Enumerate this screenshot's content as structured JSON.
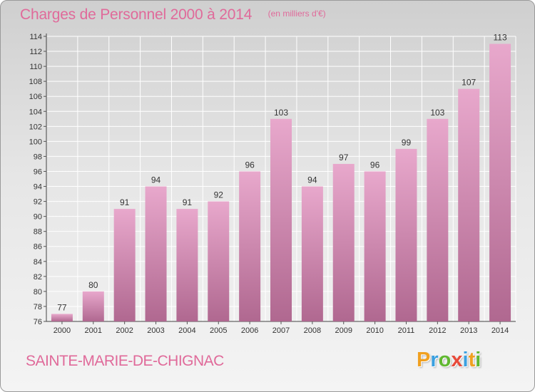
{
  "header": {
    "title": "Charges de Personnel 2000 à 2014",
    "subtitle": "(en milliers d'€)"
  },
  "footer": {
    "commune": "SAINTE-MARIE-DE-CHIGNAC",
    "logo_text": "Proxiti",
    "logo_letters": [
      {
        "ch": "P",
        "color": "#f0a020"
      },
      {
        "ch": "r",
        "color": "#3aa0e0"
      },
      {
        "ch": "o",
        "color": "#60b830"
      },
      {
        "ch": "x",
        "color": "#e84a3a"
      },
      {
        "ch": "i",
        "color": "#3aa0e0"
      },
      {
        "ch": "t",
        "color": "#f0a020"
      },
      {
        "ch": "i",
        "color": "#60b830"
      }
    ]
  },
  "colors": {
    "accent": "#e06a9a",
    "bar_top": "#e8a8cc",
    "bar_bottom": "#b06890"
  },
  "chart_data": {
    "type": "bar",
    "title": "Charges de Personnel 2000 à 2014",
    "subtitle": "(en milliers d'€)",
    "xlabel": "",
    "ylabel": "",
    "categories": [
      "2000",
      "2001",
      "2002",
      "2003",
      "2004",
      "2005",
      "2006",
      "2007",
      "2008",
      "2009",
      "2010",
      "2011",
      "2012",
      "2013",
      "2014"
    ],
    "values": [
      77,
      80,
      91,
      94,
      91,
      92,
      96,
      103,
      94,
      97,
      96,
      99,
      103,
      107,
      113
    ],
    "ylim": [
      76,
      114
    ],
    "yticks": [
      76,
      78,
      80,
      82,
      84,
      86,
      88,
      90,
      92,
      94,
      96,
      98,
      100,
      102,
      104,
      106,
      108,
      110,
      112,
      114
    ],
    "grid": true,
    "legend": "none"
  }
}
